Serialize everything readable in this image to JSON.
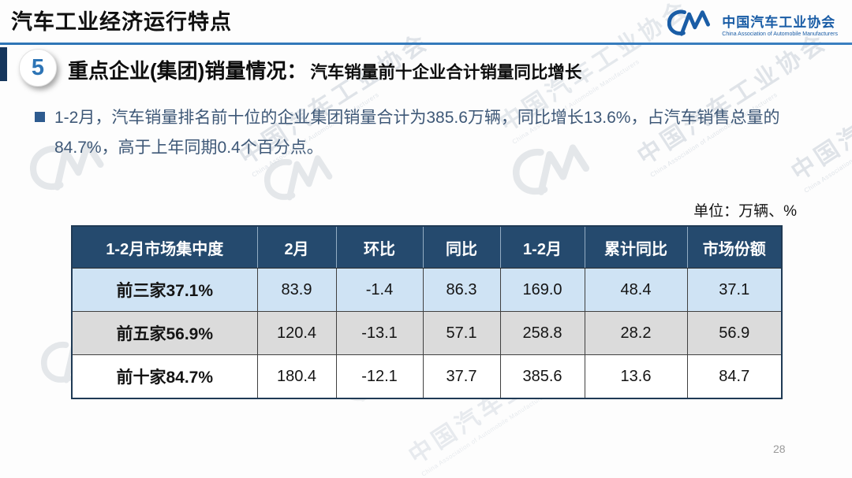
{
  "slide": {
    "title": "汽车工业经济运行特点",
    "unit_label": "单位：万辆、%",
    "page_number": "28"
  },
  "logo": {
    "cn": "中国汽车工业协会",
    "en": "China Association of Automobile Manufacturers"
  },
  "section": {
    "number": "5",
    "title": "重点企业(集团)销量情况：",
    "subtitle": "汽车销量前十企业合计销量同比增长"
  },
  "bullet": "1-2月，汽车销量排名前十位的企业集团销量合计为385.6万辆，同比增长13.6%，占汽车销售总量的84.7%，高于上年同期0.4个百分点。",
  "table": {
    "columns": [
      "1-2月市场集中度",
      "2月",
      "环比",
      "同比",
      "1-2月",
      "累计同比",
      "市场份额"
    ],
    "rows": [
      {
        "label": "前三家37.1%",
        "values": [
          "83.9",
          "-1.4",
          "86.3",
          "169.0",
          "48.4",
          "37.1"
        ]
      },
      {
        "label": "前五家56.9%",
        "values": [
          "120.4",
          "-13.1",
          "57.1",
          "258.8",
          "28.2",
          "56.9"
        ]
      },
      {
        "label": "前十家84.7%",
        "values": [
          "180.4",
          "-12.1",
          "37.7",
          "385.6",
          "13.6",
          "84.7"
        ]
      }
    ]
  },
  "chart_data": {
    "type": "table",
    "title": "1-2月市场集中度",
    "unit": "万辆、%",
    "columns": [
      "1-2月市场集中度",
      "2月",
      "环比",
      "同比",
      "1-2月",
      "累计同比",
      "市场份额"
    ],
    "rows": [
      [
        "前三家37.1%",
        83.9,
        -1.4,
        86.3,
        169.0,
        48.4,
        37.1
      ],
      [
        "前五家56.9%",
        120.4,
        -13.1,
        57.1,
        258.8,
        28.2,
        56.9
      ],
      [
        "前十家84.7%",
        180.4,
        -12.1,
        37.7,
        385.6,
        13.6,
        84.7
      ]
    ]
  },
  "colors": {
    "accent_blue": "#2e75b6",
    "logo_blue": "#1a5da6",
    "table_header_navy": "#254a6e",
    "row_blue": "#cfe3f4",
    "row_gray": "#dbdbdb",
    "body_text_blue": "#3e5877",
    "section_bar_navy": "#16365c"
  }
}
